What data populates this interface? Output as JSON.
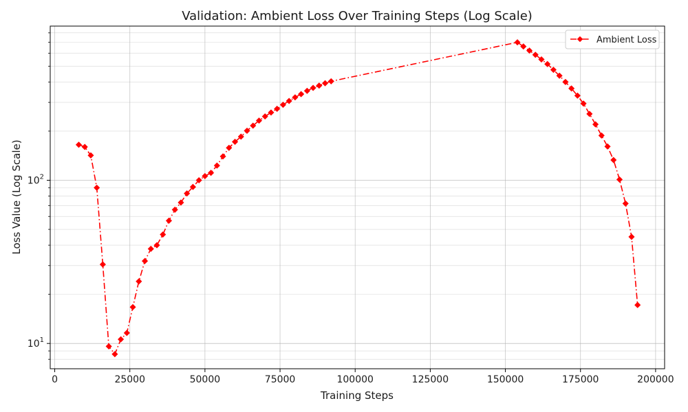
{
  "chart_data": {
    "type": "line",
    "title": "Validation: Ambient Loss Over Training Steps (Log Scale)",
    "xlabel": "Training Steps",
    "ylabel": "Loss Value (Log Scale)",
    "xlim": [
      -1500,
      203000
    ],
    "ylim": [
      7,
      880
    ],
    "yscale": "log",
    "grid": true,
    "legend_position": "top-right",
    "x_ticks": [
      0,
      25000,
      50000,
      75000,
      100000,
      125000,
      150000,
      175000,
      200000
    ],
    "y_ticks": [
      10,
      100
    ],
    "y_tick_labels": [
      {
        "base": "10",
        "exp": "1"
      },
      {
        "base": "10",
        "exp": "2"
      }
    ],
    "series": [
      {
        "name": "Ambient Loss",
        "color": "#ff0000",
        "line_style": "dash-dot",
        "marker": "diamond",
        "points": [
          [
            8000,
            165
          ],
          [
            10000,
            160
          ],
          [
            12000,
            142
          ],
          [
            14000,
            90
          ],
          [
            16000,
            30.5
          ],
          [
            18000,
            9.6
          ],
          [
            20000,
            8.6
          ],
          [
            22000,
            10.6
          ],
          [
            24000,
            11.6
          ],
          [
            26000,
            16.7
          ],
          [
            28000,
            24
          ],
          [
            30000,
            32
          ],
          [
            32000,
            38
          ],
          [
            34000,
            40
          ],
          [
            36000,
            46.5
          ],
          [
            38000,
            56.5
          ],
          [
            40000,
            66
          ],
          [
            42000,
            73
          ],
          [
            44000,
            83
          ],
          [
            46000,
            91
          ],
          [
            48000,
            100
          ],
          [
            50000,
            106
          ],
          [
            52000,
            111
          ],
          [
            54000,
            123
          ],
          [
            56000,
            140
          ],
          [
            58000,
            158
          ],
          [
            60000,
            172
          ],
          [
            62000,
            185
          ],
          [
            64000,
            201
          ],
          [
            66000,
            216
          ],
          [
            68000,
            232
          ],
          [
            70000,
            246
          ],
          [
            72000,
            260
          ],
          [
            74000,
            274
          ],
          [
            76000,
            290
          ],
          [
            78000,
            306
          ],
          [
            80000,
            322
          ],
          [
            82000,
            337
          ],
          [
            84000,
            353
          ],
          [
            86000,
            368
          ],
          [
            88000,
            380
          ],
          [
            90000,
            393
          ],
          [
            92000,
            404
          ],
          [
            154000,
            700
          ],
          [
            156000,
            660
          ],
          [
            158000,
            623
          ],
          [
            160000,
            587
          ],
          [
            162000,
            550
          ],
          [
            164000,
            515
          ],
          [
            166000,
            475
          ],
          [
            168000,
            437
          ],
          [
            170000,
            400
          ],
          [
            172000,
            365
          ],
          [
            174000,
            330
          ],
          [
            176000,
            295
          ],
          [
            178000,
            255
          ],
          [
            180000,
            220
          ],
          [
            182000,
            188
          ],
          [
            184000,
            161
          ],
          [
            186000,
            133
          ],
          [
            188000,
            101
          ],
          [
            190000,
            72
          ],
          [
            192000,
            45
          ],
          [
            194000,
            17.2
          ]
        ]
      }
    ]
  }
}
